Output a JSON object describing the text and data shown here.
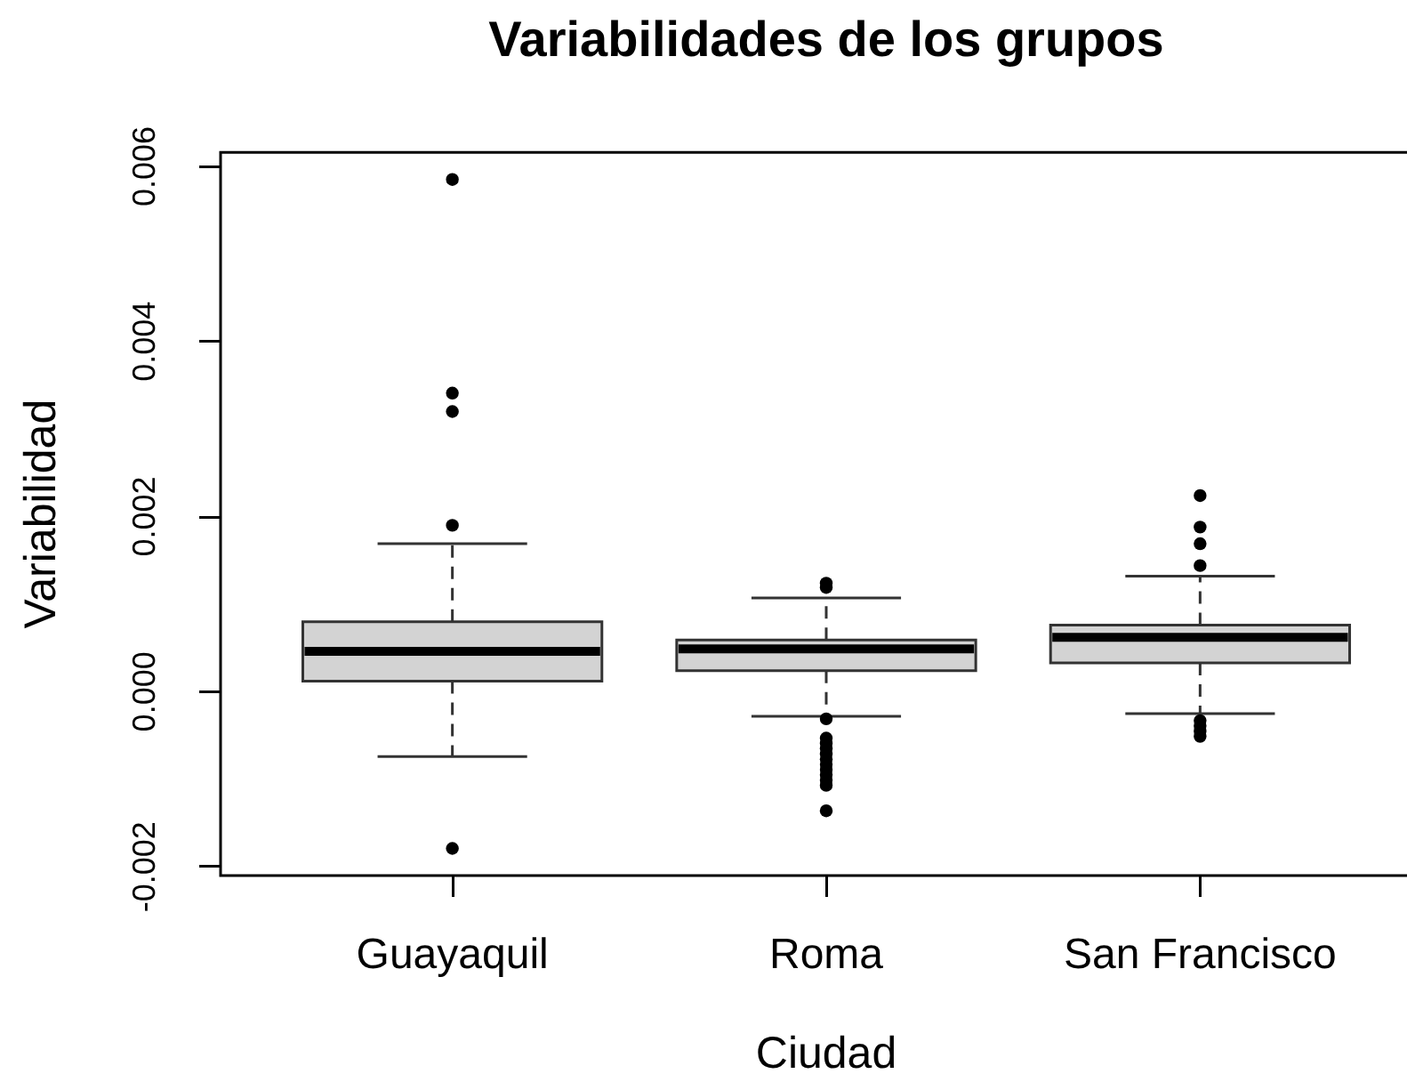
{
  "chart_data": {
    "type": "box",
    "title": "Variabilidades de los grupos",
    "xlabel": "Ciudad",
    "ylabel": "Variabilidad",
    "categories": [
      "Guayaquil",
      "Roma",
      "San Francisco"
    ],
    "boxes": [
      {
        "low": -0.00074,
        "q1": 0.00012,
        "median": 0.00046,
        "q3": 0.0008,
        "high": 0.00169,
        "outliers": [
          0.00585,
          0.00341,
          0.0032,
          0.0019,
          -0.00179
        ]
      },
      {
        "low": -0.00028,
        "q1": 0.00024,
        "median": 0.00049,
        "q3": 0.00059,
        "high": 0.00107,
        "outliers": [
          0.00124,
          0.00119,
          -0.00031,
          -0.00053,
          -0.00059,
          -0.00065,
          -0.00071,
          -0.00077,
          -0.00083,
          -0.00089,
          -0.00095,
          -0.00101,
          -0.00107,
          -0.00136
        ]
      },
      {
        "low": -0.00025,
        "q1": 0.00033,
        "median": 0.00062,
        "q3": 0.00076,
        "high": 0.00132,
        "outliers": [
          0.00224,
          0.00188,
          0.00169,
          0.00144,
          -0.00033,
          -0.00039,
          -0.00045,
          -0.00051
        ]
      }
    ],
    "color": "#d3d3d3",
    "ylim": [
      -0.0021,
      0.00616
    ],
    "yticks": [
      -0.002,
      {
        "value": 0,
        "label": "0.000"
      },
      0.002,
      0.004,
      0.006
    ],
    "grid": false
  }
}
